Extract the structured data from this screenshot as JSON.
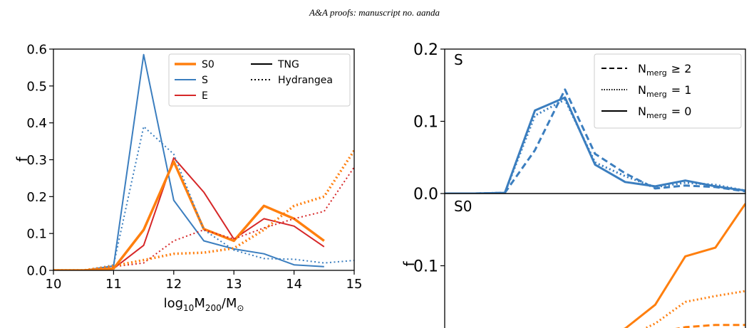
{
  "header": "A&A proofs: manuscript no. aanda",
  "colors": {
    "S0": "#ff7f0e",
    "S": "#3b7ebf",
    "E": "#d62728"
  },
  "chart_data": [
    {
      "type": "line",
      "xlabel": "log10M200/M⊙",
      "xlabel_parts": {
        "base": "log",
        "sub1": "10",
        "mid": "M",
        "sub2": "200",
        "tail": "/M",
        "sub3": "⊙"
      },
      "ylabel": "f",
      "xlim": [
        10,
        15
      ],
      "ylim": [
        0,
        0.6
      ],
      "xticks": [
        "10",
        "11",
        "12",
        "13",
        "14",
        "15"
      ],
      "yticks": [
        "0.0",
        "0.1",
        "0.2",
        "0.3",
        "0.4",
        "0.5",
        "0.6"
      ],
      "legend_position": "top-right",
      "legend": {
        "series": [
          {
            "name": "S0",
            "color": "#ff7f0e"
          },
          {
            "name": "S",
            "color": "#3b7ebf"
          },
          {
            "name": "E",
            "color": "#d62728"
          }
        ],
        "styles": [
          {
            "name": "TNG",
            "dash": "solid"
          },
          {
            "name": "Hydrangea",
            "dash": "dotted"
          }
        ]
      },
      "series": [
        {
          "name": "S",
          "sim": "TNG",
          "color": "#3b7ebf",
          "dash": "solid",
          "thick": false,
          "x": [
            10,
            10.5,
            11,
            11.5,
            12,
            12.5,
            13,
            13.5,
            14,
            14.5
          ],
          "y": [
            0,
            0,
            0.012,
            0.585,
            0.19,
            0.08,
            0.058,
            0.045,
            0.015,
            0.01
          ]
        },
        {
          "name": "E",
          "sim": "TNG",
          "color": "#d62728",
          "dash": "solid",
          "thick": false,
          "x": [
            10,
            10.5,
            11,
            11.5,
            12,
            12.5,
            13,
            13.5,
            14,
            14.5
          ],
          "y": [
            0,
            0,
            0.005,
            0.068,
            0.305,
            0.212,
            0.085,
            0.14,
            0.12,
            0.064
          ]
        },
        {
          "name": "S0",
          "sim": "TNG",
          "color": "#ff7f0e",
          "dash": "solid",
          "thick": true,
          "x": [
            10,
            10.5,
            11,
            11.5,
            12,
            12.5,
            13,
            13.5,
            14,
            14.5
          ],
          "y": [
            0,
            0,
            0.005,
            0.11,
            0.295,
            0.112,
            0.08,
            0.175,
            0.14,
            0.08
          ]
        },
        {
          "name": "S",
          "sim": "Hydrangea",
          "color": "#3b7ebf",
          "dash": "dotted",
          "thick": false,
          "x": [
            10,
            10.5,
            11,
            11.5,
            12,
            12.5,
            13,
            13.5,
            14,
            14.5,
            15
          ],
          "y": [
            0,
            0,
            0.015,
            0.39,
            0.315,
            0.11,
            0.055,
            0.032,
            0.03,
            0.02,
            0.027
          ]
        },
        {
          "name": "E",
          "sim": "Hydrangea",
          "color": "#d62728",
          "dash": "dotted",
          "thick": false,
          "x": [
            10,
            10.5,
            11,
            11.5,
            12,
            12.5,
            13,
            13.5,
            14,
            14.5,
            15
          ],
          "y": [
            0,
            0,
            0.01,
            0.02,
            0.08,
            0.11,
            0.085,
            0.115,
            0.14,
            0.16,
            0.28
          ]
        },
        {
          "name": "S0",
          "sim": "Hydrangea",
          "color": "#ff7f0e",
          "dash": "dotted",
          "thick": true,
          "x": [
            10,
            10.5,
            11,
            11.5,
            12,
            12.5,
            13,
            13.5,
            14,
            14.5,
            15
          ],
          "y": [
            0,
            0,
            0.012,
            0.028,
            0.045,
            0.048,
            0.06,
            0.11,
            0.175,
            0.2,
            0.325
          ]
        }
      ]
    },
    {
      "type": "line",
      "panel_label": "S",
      "ylabel": "",
      "xlim": [
        10,
        15
      ],
      "ylim": [
        0,
        0.2
      ],
      "yticks": [
        "0.0",
        "0.1",
        "0.2"
      ],
      "legend_position": "top-right",
      "legend": [
        {
          "label_main": "N",
          "label_sub": "merg",
          "label_rel": "≥ 2",
          "dash": "dashed"
        },
        {
          "label_main": "N",
          "label_sub": "merg",
          "label_rel": "= 1",
          "dash": "dotted"
        },
        {
          "label_main": "N",
          "label_sub": "merg",
          "label_rel": "= 0",
          "dash": "solid"
        }
      ],
      "series": [
        {
          "nmerg": "0",
          "color": "#3b7ebf",
          "dash": "solid",
          "x": [
            10,
            10.5,
            11,
            11.5,
            12,
            12.5,
            13,
            13.5,
            14,
            14.5,
            15
          ],
          "y": [
            0,
            0,
            0.001,
            0.115,
            0.133,
            0.04,
            0.016,
            0.01,
            0.018,
            0.01,
            0.004
          ]
        },
        {
          "nmerg": "1",
          "color": "#3b7ebf",
          "dash": "dotted",
          "x": [
            10,
            10.5,
            11,
            11.5,
            12,
            12.5,
            13,
            13.5,
            14,
            14.5,
            15
          ],
          "y": [
            0,
            0,
            0.001,
            0.108,
            0.13,
            0.043,
            0.024,
            0.009,
            0.015,
            0.012,
            0.004
          ]
        },
        {
          "nmerg": "≥2",
          "color": "#3b7ebf",
          "dash": "dashed",
          "x": [
            10,
            10.5,
            11,
            11.5,
            12,
            12.5,
            13,
            13.5,
            14,
            14.5,
            15
          ],
          "y": [
            0,
            0,
            0.001,
            0.06,
            0.144,
            0.055,
            0.028,
            0.007,
            0.011,
            0.009,
            0.003
          ]
        }
      ]
    },
    {
      "type": "line",
      "panel_label": "S0",
      "ylabel": "f",
      "xlim": [
        10,
        15
      ],
      "ylim": [
        0,
        0.2
      ],
      "yticks": [
        "0.1"
      ],
      "series": [
        {
          "nmerg": "0",
          "color": "#ff7f0e",
          "dash": "solid",
          "x": [
            10,
            10.5,
            11,
            11.5,
            12,
            12.5,
            13,
            13.5,
            14,
            14.5,
            15
          ],
          "y": [
            0,
            0,
            0,
            0,
            0.002,
            0,
            0.013,
            0.046,
            0.113,
            0.125,
            0.186
          ]
        },
        {
          "nmerg": "1",
          "color": "#ff7f0e",
          "dash": "dotted",
          "x": [
            10,
            10.5,
            11,
            11.5,
            12,
            12.5,
            13,
            13.5,
            14,
            14.5,
            15
          ],
          "y": [
            0,
            0,
            0,
            0,
            0,
            0,
            0,
            0.02,
            0.05,
            0.058,
            0.065
          ]
        },
        {
          "nmerg": "≥2",
          "color": "#ff7f0e",
          "dash": "dashed",
          "x": [
            10,
            10.5,
            11,
            11.5,
            12,
            12.5,
            13,
            13.5,
            14,
            14.5,
            15
          ],
          "y": [
            0,
            0,
            0,
            0,
            0,
            0,
            0,
            0.007,
            0.015,
            0.018,
            0.018
          ]
        }
      ]
    }
  ]
}
